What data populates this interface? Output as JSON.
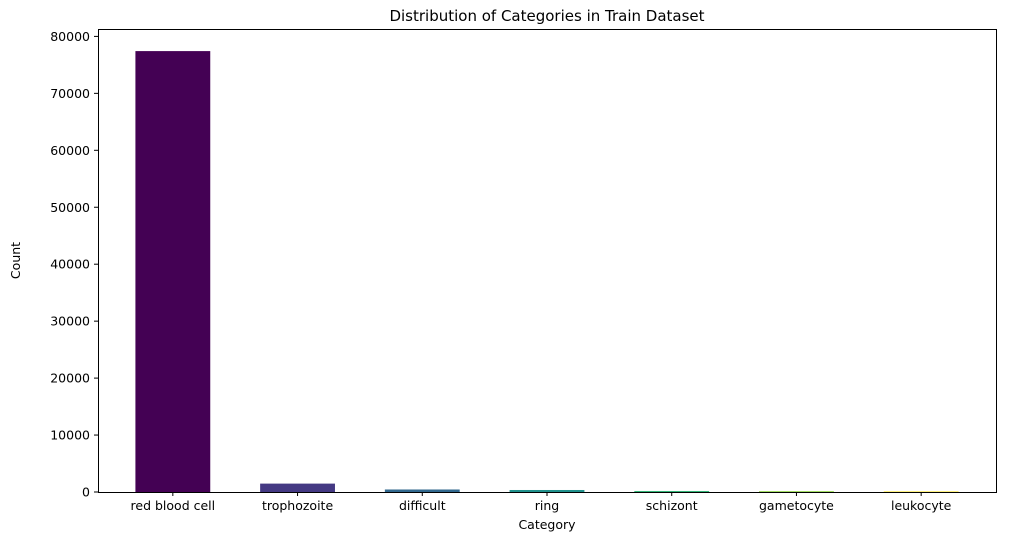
{
  "chart_data": {
    "type": "bar",
    "title": "Distribution of Categories in Train Dataset",
    "xlabel": "Category",
    "ylabel": "Count",
    "categories": [
      "red blood cell",
      "trophozoite",
      "difficult",
      "ring",
      "schizont",
      "gametocyte",
      "leukocyte"
    ],
    "values": [
      77420,
      1473,
      441,
      353,
      179,
      144,
      103
    ],
    "colors": [
      "#440154",
      "#443983",
      "#31688e",
      "#21918c",
      "#35b779",
      "#90d743",
      "#fde725"
    ],
    "ylim": [
      0,
      81300
    ],
    "yticks": [
      0,
      10000,
      20000,
      30000,
      40000,
      50000,
      60000,
      70000,
      80000
    ],
    "ytick_labels": [
      "0",
      "10000",
      "20000",
      "30000",
      "40000",
      "50000",
      "60000",
      "70000",
      "80000"
    ],
    "grid": false,
    "legend": "none"
  }
}
